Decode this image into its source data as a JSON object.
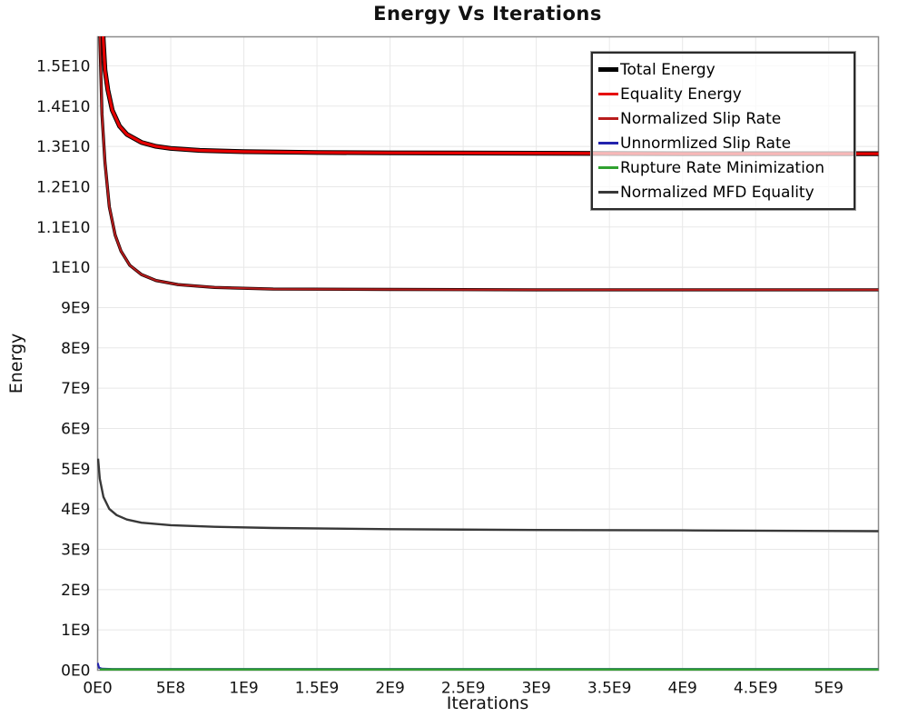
{
  "chart_data": {
    "type": "line",
    "title": "Energy Vs Iterations",
    "xlabel": "Iterations",
    "ylabel": "Energy",
    "xlim": [
      0,
      5340000000.0
    ],
    "ylim": [
      0,
      15720000000.0
    ],
    "grid": true,
    "legend_position": "top-right",
    "x_ticks": [
      {
        "label": "0E0",
        "value": 0
      },
      {
        "label": "5E8",
        "value": 500000000.0
      },
      {
        "label": "1E9",
        "value": 1000000000.0
      },
      {
        "label": "1.5E9",
        "value": 1500000000.0
      },
      {
        "label": "2E9",
        "value": 2000000000.0
      },
      {
        "label": "2.5E9",
        "value": 2500000000.0
      },
      {
        "label": "3E9",
        "value": 3000000000.0
      },
      {
        "label": "3.5E9",
        "value": 3500000000.0
      },
      {
        "label": "4E9",
        "value": 4000000000.0
      },
      {
        "label": "4.5E9",
        "value": 4500000000.0
      },
      {
        "label": "5E9",
        "value": 5000000000.0
      }
    ],
    "y_ticks": [
      {
        "label": "0E0",
        "value": 0
      },
      {
        "label": "1E9",
        "value": 1000000000.0
      },
      {
        "label": "2E9",
        "value": 2000000000.0
      },
      {
        "label": "3E9",
        "value": 3000000000.0
      },
      {
        "label": "4E9",
        "value": 4000000000.0
      },
      {
        "label": "5E9",
        "value": 5000000000.0
      },
      {
        "label": "6E9",
        "value": 6000000000.0
      },
      {
        "label": "7E9",
        "value": 7000000000.0
      },
      {
        "label": "8E9",
        "value": 8000000000.0
      },
      {
        "label": "9E9",
        "value": 9000000000.0
      },
      {
        "label": "1E10",
        "value": 10000000000.0
      },
      {
        "label": "1.1E10",
        "value": 11000000000.0
      },
      {
        "label": "1.2E10",
        "value": 12000000000.0
      },
      {
        "label": "1.3E10",
        "value": 13000000000.0
      },
      {
        "label": "1.4E10",
        "value": 14000000000.0
      },
      {
        "label": "1.5E10",
        "value": 15000000000.0
      }
    ],
    "series": [
      {
        "name": "Unnormlized Slip Rate",
        "color": "#2323ad",
        "width": 2.2,
        "points": [
          [
            0,
            180000000.0
          ],
          [
            10000000.0,
            60000000.0
          ],
          [
            30000000.0,
            35000000.0
          ],
          [
            100000000.0,
            30000000.0
          ],
          [
            5340000000.0,
            30000000.0
          ]
        ]
      },
      {
        "name": "Rupture Rate Minimization",
        "color": "#2fa12f",
        "width": 2.5,
        "points": [
          [
            15000000.0,
            20000000.0
          ],
          [
            5340000000.0,
            20000000.0
          ]
        ]
      },
      {
        "name": "Normalized MFD Equality",
        "color": "#383838",
        "width": 2.4,
        "points": [
          [
            3000000.0,
            5250000000.0
          ],
          [
            15000000.0,
            4750000000.0
          ],
          [
            40000000.0,
            4300000000.0
          ],
          [
            80000000.0,
            4000000000.0
          ],
          [
            130000000.0,
            3850000000.0
          ],
          [
            200000000.0,
            3740000000.0
          ],
          [
            300000000.0,
            3660000000.0
          ],
          [
            500000000.0,
            3600000000.0
          ],
          [
            800000000.0,
            3560000000.0
          ],
          [
            1200000000.0,
            3530000000.0
          ],
          [
            2000000000.0,
            3500000000.0
          ],
          [
            3000000000.0,
            3480000000.0
          ],
          [
            4000000000.0,
            3470000000.0
          ],
          [
            5340000000.0,
            3450000000.0
          ]
        ]
      },
      {
        "name": "Total Energy",
        "color": "#000000",
        "width": 5.2,
        "points": [
          [
            30000000.0,
            16200000000.0
          ],
          [
            50000000.0,
            14900000000.0
          ],
          [
            70000000.0,
            14400000000.0
          ],
          [
            100000000.0,
            13900000000.0
          ],
          [
            150000000.0,
            13500000000.0
          ],
          [
            200000000.0,
            13300000000.0
          ],
          [
            300000000.0,
            13100000000.0
          ],
          [
            400000000.0,
            13000000000.0
          ],
          [
            500000000.0,
            12950000000.0
          ],
          [
            700000000.0,
            12900000000.0
          ],
          [
            1000000000.0,
            12870000000.0
          ],
          [
            1500000000.0,
            12850000000.0
          ],
          [
            2000000000.0,
            12840000000.0
          ],
          [
            3000000000.0,
            12830000000.0
          ],
          [
            4000000000.0,
            12820000000.0
          ],
          [
            5340000000.0,
            12820000000.0
          ]
        ]
      },
      {
        "name": "Equality Energy",
        "color": "#e60000",
        "width": 3.2,
        "points": [
          [
            30000000.0,
            16200000000.0
          ],
          [
            50000000.0,
            14900000000.0
          ],
          [
            70000000.0,
            14400000000.0
          ],
          [
            100000000.0,
            13900000000.0
          ],
          [
            150000000.0,
            13500000000.0
          ],
          [
            200000000.0,
            13300000000.0
          ],
          [
            300000000.0,
            13100000000.0
          ],
          [
            400000000.0,
            13000000000.0
          ],
          [
            500000000.0,
            12950000000.0
          ],
          [
            700000000.0,
            12900000000.0
          ],
          [
            1000000000.0,
            12870000000.0
          ],
          [
            1500000000.0,
            12850000000.0
          ],
          [
            2000000000.0,
            12840000000.0
          ],
          [
            3000000000.0,
            12830000000.0
          ],
          [
            4000000000.0,
            12820000000.0
          ],
          [
            5340000000.0,
            12820000000.0
          ]
        ]
      },
      {
        "name": "Normalized Slip Rate",
        "color": "#b81c1c",
        "width": 2.0,
        "under_color": "#1a0000",
        "under_width": 3.4,
        "points": [
          [
            12000000.0,
            16200000000.0
          ],
          [
            30000000.0,
            13800000000.0
          ],
          [
            50000000.0,
            12600000000.0
          ],
          [
            80000000.0,
            11500000000.0
          ],
          [
            120000000.0,
            10800000000.0
          ],
          [
            160000000.0,
            10400000000.0
          ],
          [
            220000000.0,
            10050000000.0
          ],
          [
            300000000.0,
            9820000000.0
          ],
          [
            400000000.0,
            9670000000.0
          ],
          [
            550000000.0,
            9570000000.0
          ],
          [
            800000000.0,
            9500000000.0
          ],
          [
            1200000000.0,
            9460000000.0
          ],
          [
            2000000000.0,
            9450000000.0
          ],
          [
            3000000000.0,
            9440000000.0
          ],
          [
            4000000000.0,
            9440000000.0
          ],
          [
            5340000000.0,
            9440000000.0
          ]
        ]
      }
    ],
    "colors": {
      "gridline": "#e8e8e8",
      "plot_border": "#8c8c8c",
      "legend_border": "#2b2b2b"
    }
  }
}
